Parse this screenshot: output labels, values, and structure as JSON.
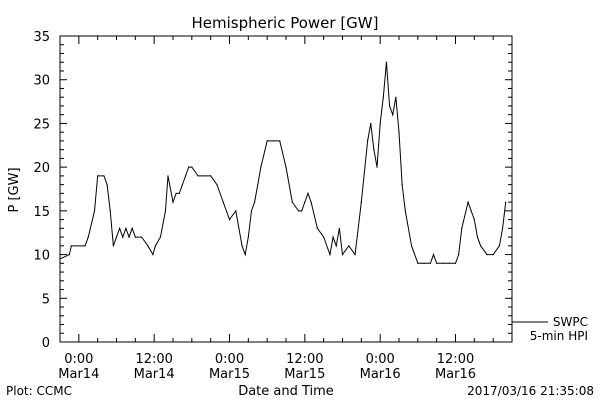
{
  "chart_data": {
    "type": "line",
    "title": "Hemispheric Power [GW]",
    "ylabel": "P [GW]",
    "xlabel": "Date and Time",
    "ylim": [
      0,
      35
    ],
    "y_ticks": [
      0,
      5,
      10,
      15,
      20,
      25,
      30,
      35
    ],
    "x_range_hours": [
      -3,
      69
    ],
    "x_ticks": [
      {
        "hour": 0,
        "line1": "0:00",
        "line2": "Mar14"
      },
      {
        "hour": 12,
        "line1": "12:00",
        "line2": "Mar14"
      },
      {
        "hour": 24,
        "line1": "0:00",
        "line2": "Mar15"
      },
      {
        "hour": 36,
        "line1": "12:00",
        "line2": "Mar15"
      },
      {
        "hour": 48,
        "line1": "0:00",
        "line2": "Mar16"
      },
      {
        "hour": 60,
        "line1": "12:00",
        "line2": "Mar16"
      }
    ],
    "grid": false,
    "series": [
      {
        "name": "",
        "x": [
          -3,
          -1.5,
          -1.2,
          1,
          1.5,
          2.5,
          3,
          4,
          4.5,
          5,
          5.5,
          6,
          6.5,
          7,
          7.5,
          8,
          8.5,
          9,
          10,
          11,
          11.8,
          12.2,
          13,
          13.8,
          14.2,
          15,
          15.5,
          16,
          16.5,
          17,
          17.5,
          18,
          19,
          20,
          21,
          22,
          23,
          24,
          25,
          25.5,
          26,
          26.5,
          27,
          27.5,
          28,
          29,
          30,
          31,
          32,
          33,
          34,
          35,
          35.5,
          36,
          36.5,
          37,
          38,
          39,
          40,
          40.5,
          41,
          41.5,
          42,
          43,
          44,
          45,
          46,
          46.5,
          47,
          47.5,
          48,
          48.5,
          49,
          49.5,
          50,
          50.5,
          51,
          51.5,
          52,
          53,
          54,
          55,
          56,
          56.5,
          57,
          58,
          59,
          60,
          60.5,
          61,
          62,
          62.5,
          63,
          63.5,
          64,
          65,
          66,
          67,
          67.5,
          68
        ],
        "values": [
          9.5,
          10,
          11,
          11,
          12,
          15,
          19,
          19,
          18,
          15,
          11,
          12,
          13,
          12,
          13,
          12,
          13,
          12,
          12,
          11,
          10,
          11,
          12,
          15,
          19,
          16,
          17,
          17,
          18,
          19,
          20,
          20,
          19,
          19,
          19,
          18,
          16,
          14,
          15,
          13,
          11,
          10,
          12,
          15,
          16,
          20,
          23,
          23,
          23,
          20,
          16,
          15,
          15,
          16,
          17,
          16,
          13,
          12,
          10,
          12,
          11,
          13,
          10,
          11,
          10,
          16,
          23,
          25,
          22,
          20,
          25,
          28,
          32,
          27,
          26,
          28,
          24,
          18,
          15,
          11,
          9,
          9,
          9,
          10,
          9,
          9,
          9,
          9,
          10,
          13,
          16,
          15,
          14,
          12,
          11,
          10,
          10,
          11,
          13,
          16
        ]
      }
    ]
  },
  "legend": {
    "org": "SWPC",
    "desc": "5-min HPI"
  },
  "footer": {
    "left": "Plot: CCMC",
    "right": "2017/03/16 21:35:08"
  }
}
